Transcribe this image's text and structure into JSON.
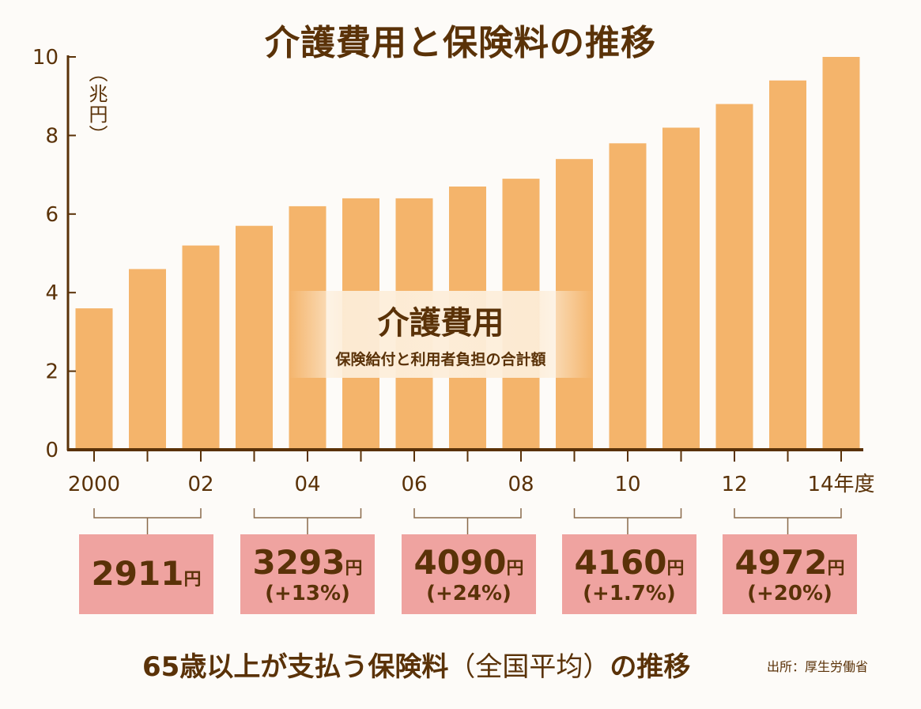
{
  "title": "介護費用と保険料の推移",
  "chart_data": {
    "type": "bar",
    "title": "介護費用と保険料の推移",
    "ylabel": "（兆円）",
    "xlabel": "年度",
    "ylim": [
      0,
      10
    ],
    "yticks": [
      "0",
      "2",
      "4",
      "6",
      "8",
      "10"
    ],
    "grid": false,
    "categories": [
      "2000",
      "01",
      "02",
      "03",
      "04",
      "05",
      "06",
      "07",
      "08",
      "09",
      "10",
      "11",
      "12",
      "13",
      "14"
    ],
    "xtick_labels": [
      "2000",
      "",
      "02",
      "",
      "04",
      "",
      "06",
      "",
      "08",
      "",
      "10",
      "",
      "12",
      "",
      "14年度"
    ],
    "series": [
      {
        "name": "介護費用",
        "values": [
          3.6,
          4.6,
          5.2,
          5.7,
          6.2,
          6.4,
          6.4,
          6.7,
          6.9,
          7.4,
          7.8,
          8.2,
          8.8,
          9.4,
          10.0
        ]
      }
    ],
    "series_color": "#f4b46b",
    "annotation": {
      "title": "介護費用",
      "subtitle": "保険給付と利用者負担の合計額"
    }
  },
  "premiums": {
    "title_main": "65歳以上が支払う保険料",
    "title_paren": "（全国平均）",
    "title_tail": "の推移",
    "unit": "円",
    "items": [
      {
        "amount": "2911",
        "change": ""
      },
      {
        "amount": "3293",
        "change": "(+13%)"
      },
      {
        "amount": "4090",
        "change": "(+24%)"
      },
      {
        "amount": "4160",
        "change": "(+1.7%)"
      },
      {
        "amount": "4972",
        "change": "(+20%)"
      }
    ]
  },
  "source": "出所：厚生労働省"
}
